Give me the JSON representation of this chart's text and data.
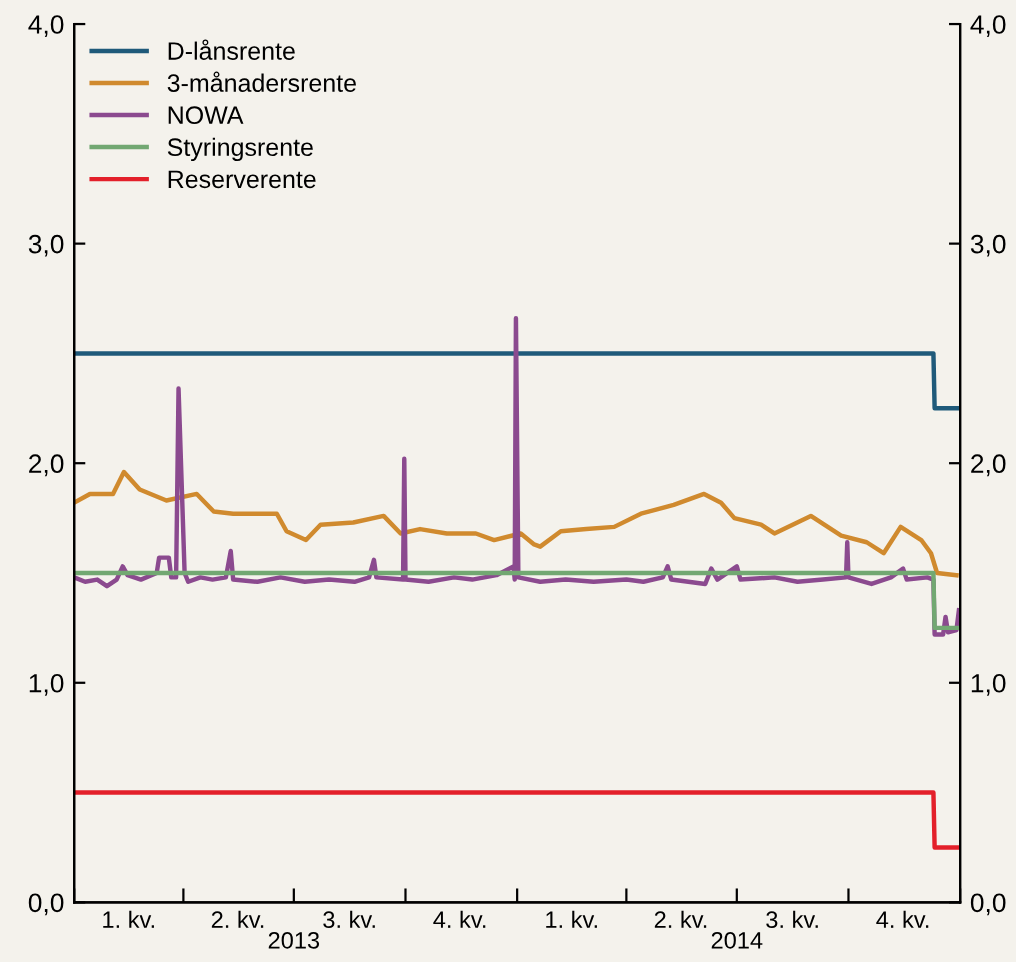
{
  "chart_data": {
    "type": "line",
    "legend": "top left",
    "grid": false,
    "marker": "none",
    "line_style": "solid",
    "xlim": [
      "2013-01-01",
      "2015-01-01"
    ],
    "xticks": [
      {
        "value": "2013-01-01",
        "label": null
      },
      {
        "value": "2013-02-15",
        "label": "1. kv."
      },
      {
        "value": "2013-04-01",
        "label": null
      },
      {
        "value": "2013-05-16",
        "label": "2. kv."
      },
      {
        "value": "2013-07-01",
        "label": null
      },
      {
        "value": "2013-08-16",
        "label": "3. kv."
      },
      {
        "value": "2013-10-01",
        "label": null
      },
      {
        "value": "2013-11-15",
        "label": "4. kv."
      },
      {
        "value": "2014-01-01",
        "label": null
      },
      {
        "value": "2014-02-15",
        "label": "1. kv."
      },
      {
        "value": "2014-04-01",
        "label": null
      },
      {
        "value": "2014-05-16",
        "label": "2. kv."
      },
      {
        "value": "2014-07-01",
        "label": null
      },
      {
        "value": "2014-08-16",
        "label": "3. kv."
      },
      {
        "value": "2014-10-01",
        "label": null
      },
      {
        "value": "2014-11-15",
        "label": "4. kv."
      },
      {
        "value": "2015-01-01",
        "label": null
      }
    ],
    "x2lim": [
      "2013-01-01",
      "2015-01-01"
    ],
    "x2ticks": [
      {
        "value": "2013-07-01",
        "label": "2013"
      },
      {
        "value": "2014-07-01",
        "label": "2014"
      }
    ],
    "ylim": [
      0,
      4
    ],
    "yticks": [
      {
        "value": 0,
        "label": "0,0"
      },
      {
        "value": 1,
        "label": "1,0"
      },
      {
        "value": 2,
        "label": "2,0"
      },
      {
        "value": 3,
        "label": "3,0"
      },
      {
        "value": 4,
        "label": "4,0"
      }
    ],
    "y2lim": [
      0,
      4
    ],
    "y2ticks": [
      {
        "value": 0,
        "label": "0,0"
      },
      {
        "value": 1,
        "label": "1,0"
      },
      {
        "value": 2,
        "label": "2,0"
      },
      {
        "value": 3,
        "label": "3,0"
      },
      {
        "value": 4,
        "label": "4,0"
      }
    ],
    "series": [
      {
        "name": "D-lånsrente",
        "color": "#1f5a7a",
        "x": [
          "2013-01-01",
          "2014-12-10",
          "2014-12-11",
          "2014-12-31"
        ],
        "values": [
          2.5,
          2.5,
          2.25,
          2.25
        ]
      },
      {
        "name": "3-månadersrente",
        "color": "#d08a2e",
        "x": [
          "2013-01-01",
          "2013-01-14",
          "2013-02-02",
          "2013-02-11",
          "2013-02-24",
          "2013-03-18",
          "2013-04-12",
          "2013-04-26",
          "2013-05-12",
          "2013-05-29",
          "2013-06-17",
          "2013-06-25",
          "2013-07-11",
          "2013-07-23",
          "2013-08-19",
          "2013-09-13",
          "2013-09-27",
          "2013-10-13",
          "2013-11-04",
          "2013-11-28",
          "2013-12-13",
          "2014-01-04",
          "2014-01-15",
          "2014-01-20",
          "2014-02-06",
          "2014-02-27",
          "2014-03-22",
          "2014-04-13",
          "2014-05-10",
          "2014-06-04",
          "2014-06-18",
          "2014-06-29",
          "2014-07-21",
          "2014-08-01",
          "2014-08-31",
          "2014-09-25",
          "2014-10-16",
          "2014-10-30",
          "2014-11-13",
          "2014-11-30",
          "2014-12-08",
          "2014-12-13",
          "2014-12-29"
        ],
        "values": [
          1.82,
          1.86,
          1.86,
          1.96,
          1.88,
          1.83,
          1.86,
          1.78,
          1.77,
          1.77,
          1.77,
          1.69,
          1.65,
          1.72,
          1.73,
          1.76,
          1.68,
          1.7,
          1.68,
          1.68,
          1.65,
          1.68,
          1.63,
          1.62,
          1.69,
          1.7,
          1.71,
          1.77,
          1.81,
          1.86,
          1.82,
          1.75,
          1.72,
          1.68,
          1.76,
          1.67,
          1.64,
          1.59,
          1.71,
          1.65,
          1.59,
          1.5,
          1.49
        ]
      },
      {
        "name": "NOWA",
        "color": "#8b4a8f",
        "x": [
          "2013-01-01",
          "2013-01-10",
          "2013-01-20",
          "2013-01-28",
          "2013-02-05",
          "2013-02-10",
          "2013-02-14",
          "2013-02-25",
          "2013-03-10",
          "2013-03-12",
          "2013-03-20",
          "2013-03-22",
          "2013-03-26",
          "2013-03-28",
          "2013-04-02",
          "2013-04-05",
          "2013-04-15",
          "2013-04-25",
          "2013-05-06",
          "2013-05-10",
          "2013-05-12",
          "2013-06-01",
          "2013-06-20",
          "2013-07-10",
          "2013-07-30",
          "2013-08-20",
          "2013-09-01",
          "2013-09-05",
          "2013-09-07",
          "2013-09-29",
          "2013-09-30",
          "2013-10-01",
          "2013-10-20",
          "2013-11-10",
          "2013-11-25",
          "2013-12-15",
          "2013-12-29",
          "2013-12-30",
          "2013-12-31",
          "2014-01-02",
          "2014-01-20",
          "2014-02-10",
          "2014-03-05",
          "2014-04-01",
          "2014-04-15",
          "2014-05-01",
          "2014-05-05",
          "2014-05-08",
          "2014-06-05",
          "2014-06-10",
          "2014-06-15",
          "2014-07-01",
          "2014-07-04",
          "2014-08-01",
          "2014-08-20",
          "2014-09-10",
          "2014-09-29",
          "2014-09-30",
          "2014-10-01",
          "2014-10-20",
          "2014-11-05",
          "2014-11-15",
          "2014-11-18",
          "2014-12-05",
          "2014-12-10",
          "2014-12-11",
          "2014-12-18",
          "2014-12-20",
          "2014-12-22",
          "2014-12-29",
          "2014-12-31"
        ],
        "values": [
          1.48,
          1.46,
          1.47,
          1.44,
          1.47,
          1.53,
          1.49,
          1.47,
          1.5,
          1.57,
          1.57,
          1.48,
          1.48,
          2.34,
          1.5,
          1.46,
          1.48,
          1.47,
          1.48,
          1.6,
          1.47,
          1.46,
          1.48,
          1.46,
          1.47,
          1.46,
          1.48,
          1.56,
          1.48,
          1.47,
          2.02,
          1.47,
          1.46,
          1.48,
          1.47,
          1.49,
          1.53,
          1.47,
          2.66,
          1.48,
          1.46,
          1.47,
          1.46,
          1.47,
          1.46,
          1.48,
          1.53,
          1.47,
          1.45,
          1.52,
          1.47,
          1.53,
          1.47,
          1.48,
          1.46,
          1.47,
          1.48,
          1.64,
          1.48,
          1.45,
          1.48,
          1.52,
          1.47,
          1.48,
          1.47,
          1.22,
          1.22,
          1.3,
          1.23,
          1.24,
          1.33
        ]
      },
      {
        "name": "Styringsrente",
        "color": "#72a872",
        "x": [
          "2013-01-01",
          "2014-12-10",
          "2014-12-11",
          "2014-12-31"
        ],
        "values": [
          1.5,
          1.5,
          1.25,
          1.25
        ]
      },
      {
        "name": "Reserverente",
        "color": "#e3202a",
        "x": [
          "2013-01-01",
          "2014-12-10",
          "2014-12-11",
          "2014-12-31"
        ],
        "values": [
          0.5,
          0.5,
          0.25,
          0.25
        ]
      }
    ]
  }
}
